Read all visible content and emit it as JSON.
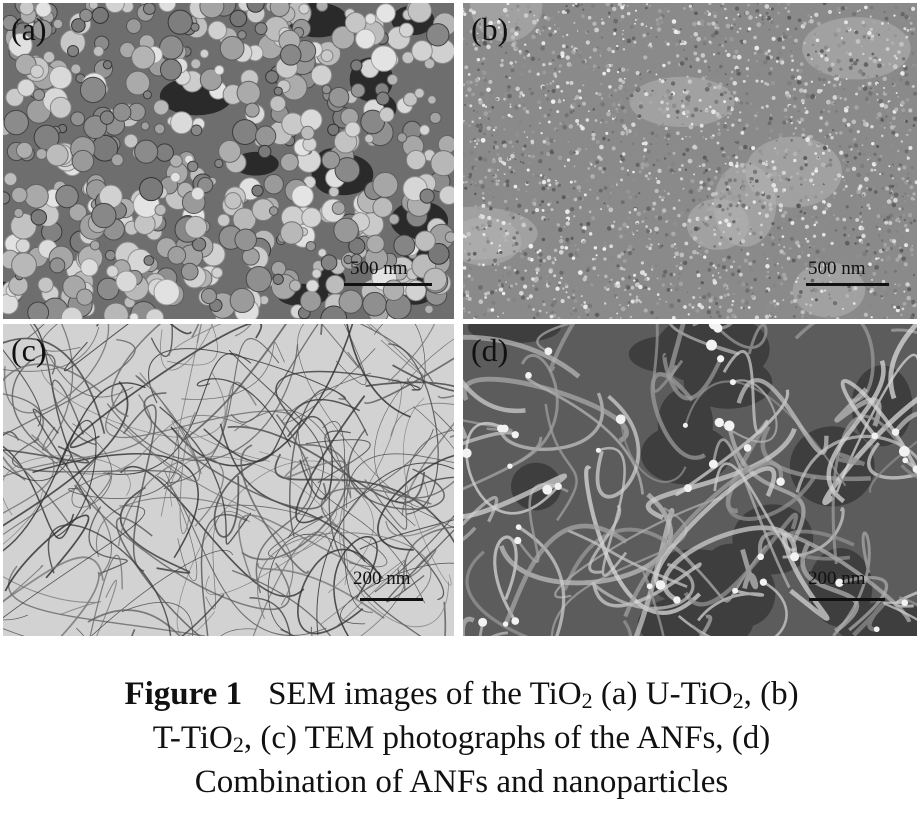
{
  "panels": [
    {
      "label": "(a)",
      "scale": "500 nm"
    },
    {
      "label": "(b)",
      "scale": "500 nm"
    },
    {
      "label": "(c)",
      "scale": "200 nm"
    },
    {
      "label": "(d)",
      "scale": "200 nm"
    }
  ],
  "caption": {
    "figure_label": "Figure 1",
    "part1": "SEM images of the TiO",
    "sub1": "2",
    "part2": " (a) U-TiO",
    "sub2": "2",
    "part3": ", (b)",
    "part4": "T-TiO",
    "sub3": "2",
    "part5": ", (c) TEM photographs of the ANFs, (d)",
    "part6": "Combination of ANFs and nanoparticles"
  }
}
